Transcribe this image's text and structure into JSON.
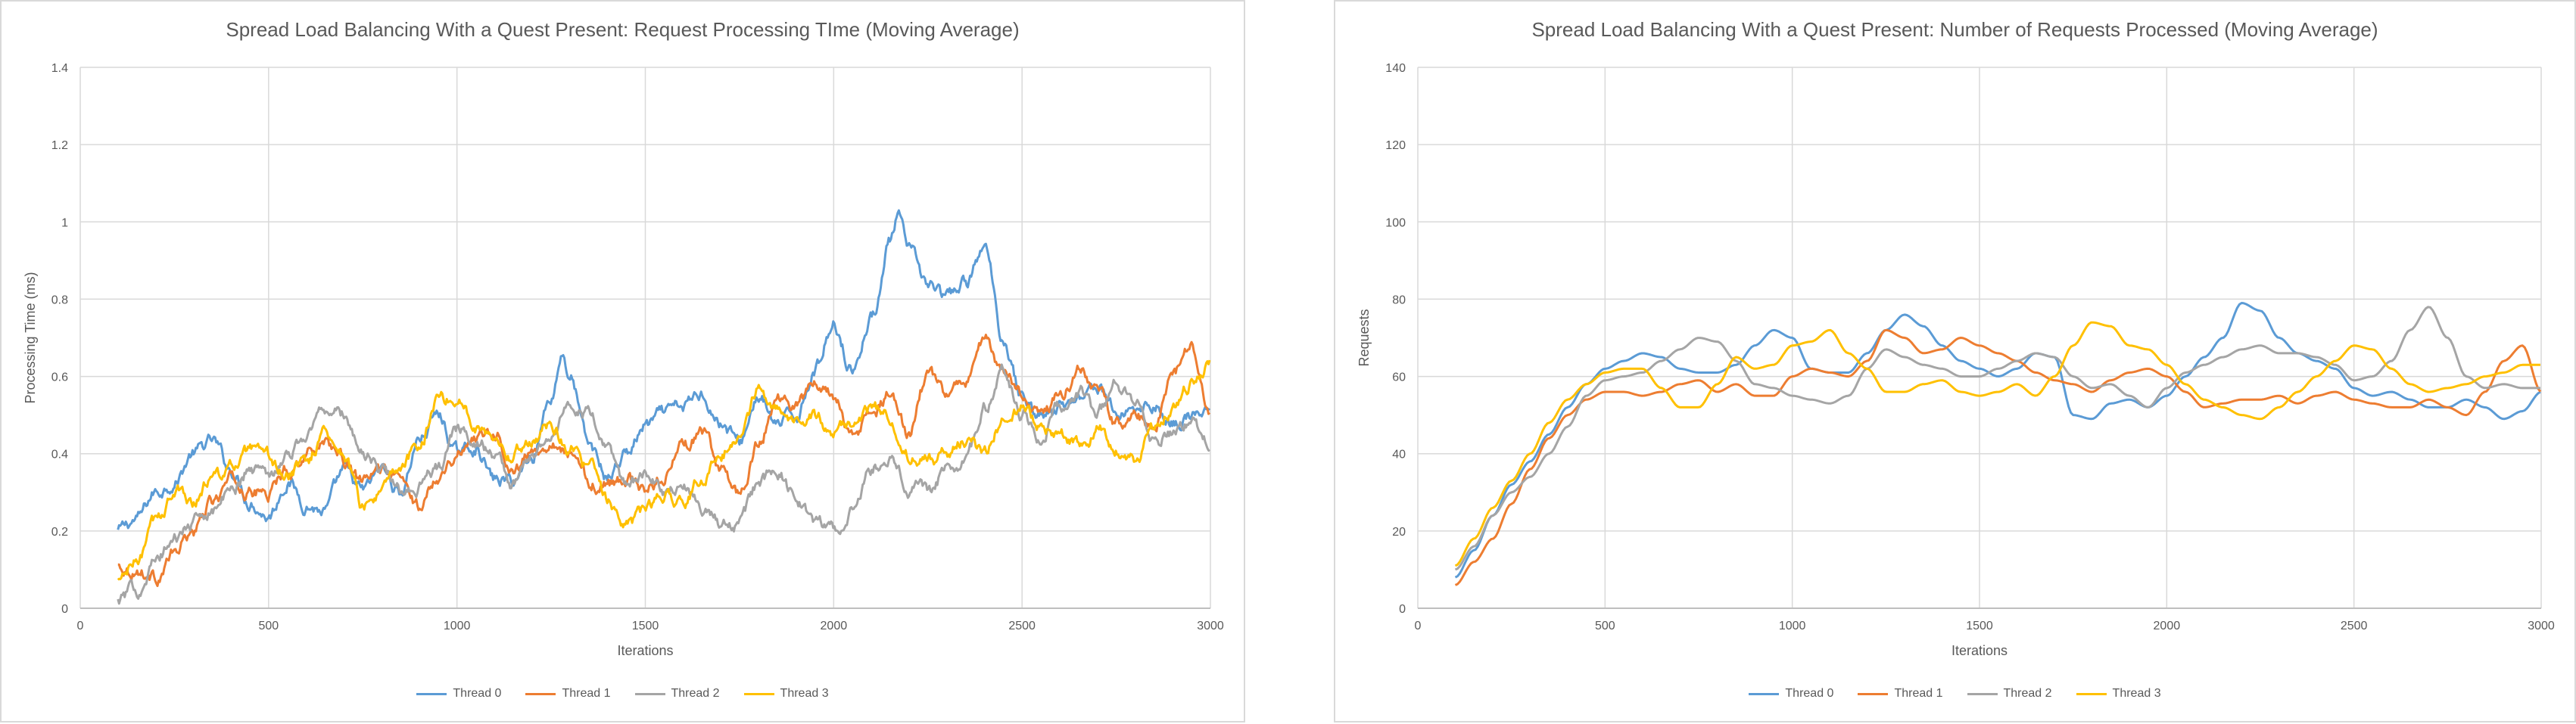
{
  "chart_data": [
    {
      "type": "line",
      "title": "Spread Load Balancing With a Quest Present: Request Processing TIme (Moving Average)",
      "xlabel": "Iterations",
      "ylabel": "Processing Time (ms)",
      "xlim": [
        0,
        3000
      ],
      "ylim": [
        0,
        1.4
      ],
      "xticks": [
        "0",
        "500",
        "1000",
        "1500",
        "2000",
        "2500",
        "3000"
      ],
      "yticks": [
        "0",
        "0.2",
        "0.4",
        "0.6",
        "0.8",
        "1",
        "1.2",
        "1.4"
      ],
      "grid": true,
      "legend_position": "bottom",
      "series": [
        {
          "name": "Thread 0",
          "color": "#5B9BD5",
          "noise": 0.025,
          "x": [
            100,
            150,
            200,
            250,
            300,
            350,
            400,
            450,
            500,
            550,
            600,
            650,
            700,
            750,
            800,
            850,
            900,
            950,
            1000,
            1050,
            1100,
            1150,
            1200,
            1250,
            1280,
            1300,
            1350,
            1400,
            1450,
            1500,
            1550,
            1600,
            1650,
            1700,
            1750,
            1800,
            1850,
            1900,
            1950,
            2000,
            2050,
            2100,
            2150,
            2170,
            2200,
            2250,
            2300,
            2350,
            2400,
            2450,
            2500,
            2550,
            2600,
            2650,
            2700,
            2750,
            2800,
            2850,
            2900,
            2950,
            3000
          ],
          "y": [
            0.2,
            0.23,
            0.3,
            0.33,
            0.4,
            0.43,
            0.36,
            0.28,
            0.24,
            0.33,
            0.27,
            0.25,
            0.35,
            0.3,
            0.36,
            0.3,
            0.44,
            0.5,
            0.4,
            0.42,
            0.33,
            0.33,
            0.4,
            0.55,
            0.66,
            0.6,
            0.42,
            0.34,
            0.4,
            0.47,
            0.5,
            0.52,
            0.56,
            0.48,
            0.43,
            0.55,
            0.47,
            0.5,
            0.62,
            0.74,
            0.62,
            0.75,
            0.95,
            1.01,
            0.92,
            0.84,
            0.8,
            0.84,
            0.93,
            0.7,
            0.55,
            0.5,
            0.52,
            0.55,
            0.58,
            0.5,
            0.52,
            0.53,
            0.48,
            0.5,
            0.5
          ]
        },
        {
          "name": "Thread 1",
          "color": "#ED7D31",
          "noise": 0.025,
          "x": [
            100,
            150,
            200,
            250,
            300,
            350,
            400,
            450,
            500,
            550,
            600,
            650,
            700,
            750,
            800,
            850,
            900,
            950,
            1000,
            1050,
            1100,
            1150,
            1200,
            1250,
            1300,
            1350,
            1400,
            1450,
            1500,
            1550,
            1600,
            1650,
            1700,
            1750,
            1800,
            1850,
            1900,
            1950,
            2000,
            2050,
            2100,
            2150,
            2200,
            2250,
            2300,
            2350,
            2400,
            2450,
            2500,
            2550,
            2600,
            2650,
            2700,
            2750,
            2800,
            2850,
            2900,
            2950,
            3000
          ],
          "y": [
            0.11,
            0.1,
            0.08,
            0.14,
            0.2,
            0.27,
            0.33,
            0.3,
            0.3,
            0.36,
            0.4,
            0.44,
            0.38,
            0.32,
            0.36,
            0.33,
            0.26,
            0.35,
            0.4,
            0.45,
            0.46,
            0.36,
            0.4,
            0.44,
            0.4,
            0.33,
            0.32,
            0.34,
            0.3,
            0.35,
            0.42,
            0.45,
            0.36,
            0.3,
            0.42,
            0.55,
            0.52,
            0.58,
            0.55,
            0.44,
            0.5,
            0.55,
            0.45,
            0.6,
            0.55,
            0.58,
            0.7,
            0.6,
            0.56,
            0.5,
            0.54,
            0.62,
            0.55,
            0.48,
            0.5,
            0.46,
            0.6,
            0.68,
            0.48
          ]
        },
        {
          "name": "Thread 2",
          "color": "#A5A5A5",
          "noise": 0.025,
          "x": [
            100,
            150,
            200,
            250,
            300,
            350,
            400,
            450,
            500,
            550,
            600,
            650,
            700,
            750,
            800,
            850,
            900,
            950,
            1000,
            1050,
            1100,
            1150,
            1200,
            1250,
            1300,
            1350,
            1400,
            1450,
            1500,
            1550,
            1600,
            1650,
            1700,
            1750,
            1800,
            1850,
            1900,
            1950,
            2000,
            2050,
            2100,
            2150,
            2200,
            2250,
            2300,
            2350,
            2400,
            2450,
            2500,
            2550,
            2600,
            2650,
            2700,
            2750,
            2800,
            2850,
            2900,
            2950,
            3000
          ],
          "y": [
            0.02,
            0.05,
            0.12,
            0.18,
            0.22,
            0.26,
            0.3,
            0.36,
            0.35,
            0.4,
            0.45,
            0.52,
            0.5,
            0.4,
            0.36,
            0.3,
            0.32,
            0.36,
            0.46,
            0.44,
            0.4,
            0.32,
            0.4,
            0.46,
            0.52,
            0.5,
            0.4,
            0.32,
            0.34,
            0.3,
            0.33,
            0.26,
            0.22,
            0.22,
            0.32,
            0.36,
            0.28,
            0.22,
            0.2,
            0.25,
            0.36,
            0.4,
            0.32,
            0.3,
            0.36,
            0.38,
            0.52,
            0.62,
            0.5,
            0.45,
            0.52,
            0.56,
            0.5,
            0.58,
            0.52,
            0.44,
            0.45,
            0.48,
            0.42
          ]
        },
        {
          "name": "Thread 3",
          "color": "#FFC000",
          "noise": 0.025,
          "x": [
            100,
            150,
            200,
            250,
            300,
            350,
            400,
            450,
            500,
            550,
            600,
            650,
            700,
            750,
            800,
            850,
            900,
            950,
            1000,
            1050,
            1100,
            1150,
            1200,
            1250,
            1300,
            1350,
            1400,
            1450,
            1500,
            1550,
            1600,
            1650,
            1700,
            1750,
            1800,
            1850,
            1900,
            1950,
            2000,
            2050,
            2100,
            2150,
            2200,
            2250,
            2300,
            2350,
            2400,
            2450,
            2500,
            2550,
            2600,
            2650,
            2700,
            2750,
            2800,
            2850,
            2900,
            2950,
            3000
          ],
          "y": [
            0.07,
            0.12,
            0.22,
            0.3,
            0.28,
            0.34,
            0.36,
            0.4,
            0.38,
            0.34,
            0.38,
            0.46,
            0.4,
            0.26,
            0.3,
            0.36,
            0.42,
            0.55,
            0.54,
            0.48,
            0.45,
            0.4,
            0.44,
            0.48,
            0.42,
            0.36,
            0.28,
            0.21,
            0.25,
            0.3,
            0.27,
            0.34,
            0.4,
            0.46,
            0.56,
            0.52,
            0.48,
            0.5,
            0.45,
            0.48,
            0.52,
            0.5,
            0.4,
            0.38,
            0.4,
            0.44,
            0.4,
            0.48,
            0.52,
            0.46,
            0.45,
            0.42,
            0.46,
            0.42,
            0.38,
            0.46,
            0.52,
            0.58,
            0.64
          ]
        }
      ]
    },
    {
      "type": "line",
      "title": "Spread Load Balancing With a Quest Present: Number of Requests Processed (Moving Average)",
      "xlabel": "Iterations",
      "ylabel": "Requests",
      "xlim": [
        0,
        3000
      ],
      "ylim": [
        0,
        140
      ],
      "xticks": [
        "0",
        "500",
        "1000",
        "1500",
        "2000",
        "2500",
        "3000"
      ],
      "yticks": [
        "0",
        "20",
        "40",
        "60",
        "80",
        "100",
        "120",
        "140"
      ],
      "grid": true,
      "legend_position": "bottom",
      "series": [
        {
          "name": "Thread 0",
          "color": "#5B9BD5",
          "noise": 0,
          "x": [
            100,
            150,
            200,
            250,
            300,
            350,
            400,
            450,
            500,
            550,
            600,
            650,
            700,
            750,
            800,
            850,
            900,
            950,
            1000,
            1050,
            1100,
            1150,
            1200,
            1250,
            1300,
            1350,
            1400,
            1450,
            1500,
            1550,
            1600,
            1650,
            1700,
            1750,
            1800,
            1850,
            1900,
            1950,
            2000,
            2050,
            2100,
            2150,
            2200,
            2250,
            2300,
            2350,
            2400,
            2450,
            2500,
            2550,
            2600,
            2650,
            2700,
            2750,
            2800,
            2850,
            2900,
            2950,
            3000
          ],
          "y": [
            8,
            15,
            24,
            32,
            38,
            45,
            52,
            58,
            62,
            64,
            66,
            65,
            62,
            61,
            61,
            63,
            68,
            72,
            70,
            62,
            61,
            61,
            66,
            72,
            76,
            73,
            68,
            64,
            62,
            60,
            62,
            66,
            65,
            50,
            49,
            53,
            54,
            52,
            55,
            60,
            65,
            70,
            79,
            77,
            70,
            66,
            64,
            62,
            57,
            55,
            56,
            54,
            52,
            52,
            54,
            52,
            49,
            51,
            56
          ]
        },
        {
          "name": "Thread 1",
          "color": "#ED7D31",
          "noise": 0,
          "x": [
            100,
            150,
            200,
            250,
            300,
            350,
            400,
            450,
            500,
            550,
            600,
            650,
            700,
            750,
            800,
            850,
            900,
            950,
            1000,
            1050,
            1100,
            1150,
            1200,
            1250,
            1300,
            1350,
            1400,
            1450,
            1500,
            1550,
            1600,
            1650,
            1700,
            1750,
            1800,
            1850,
            1900,
            1950,
            2000,
            2050,
            2100,
            2150,
            2200,
            2250,
            2300,
            2350,
            2400,
            2450,
            2500,
            2550,
            2600,
            2650,
            2700,
            2750,
            2800,
            2850,
            2900,
            2950,
            3000
          ],
          "y": [
            6,
            12,
            18,
            27,
            36,
            44,
            50,
            54,
            56,
            56,
            55,
            56,
            58,
            59,
            56,
            58,
            55,
            55,
            60,
            62,
            61,
            60,
            64,
            72,
            70,
            66,
            67,
            70,
            68,
            66,
            64,
            61,
            59,
            58,
            56,
            59,
            61,
            62,
            60,
            56,
            52,
            53,
            54,
            54,
            55,
            53,
            55,
            56,
            54,
            53,
            52,
            52,
            54,
            52,
            50,
            56,
            64,
            68,
            56
          ]
        },
        {
          "name": "Thread 2",
          "color": "#A5A5A5",
          "noise": 0,
          "x": [
            100,
            150,
            200,
            250,
            300,
            350,
            400,
            450,
            500,
            550,
            600,
            650,
            700,
            750,
            800,
            850,
            900,
            950,
            1000,
            1050,
            1100,
            1150,
            1200,
            1250,
            1300,
            1350,
            1400,
            1450,
            1500,
            1550,
            1600,
            1650,
            1700,
            1750,
            1800,
            1850,
            1900,
            1950,
            2000,
            2050,
            2100,
            2150,
            2200,
            2250,
            2300,
            2350,
            2400,
            2450,
            2500,
            2550,
            2600,
            2650,
            2700,
            2750,
            2800,
            2850,
            2900,
            2950,
            3000
          ],
          "y": [
            10,
            16,
            24,
            30,
            34,
            40,
            47,
            55,
            59,
            60,
            61,
            64,
            67,
            70,
            69,
            64,
            58,
            57,
            55,
            54,
            53,
            55,
            62,
            67,
            65,
            63,
            62,
            60,
            60,
            62,
            64,
            66,
            65,
            60,
            57,
            58,
            55,
            52,
            57,
            61,
            63,
            65,
            67,
            68,
            66,
            66,
            65,
            63,
            59,
            60,
            64,
            72,
            78,
            70,
            60,
            57,
            58,
            57,
            57
          ]
        },
        {
          "name": "Thread 3",
          "color": "#FFC000",
          "noise": 0,
          "x": [
            100,
            150,
            200,
            250,
            300,
            350,
            400,
            450,
            500,
            550,
            600,
            650,
            700,
            750,
            800,
            850,
            900,
            950,
            1000,
            1050,
            1100,
            1150,
            1200,
            1250,
            1300,
            1350,
            1400,
            1450,
            1500,
            1550,
            1600,
            1650,
            1700,
            1750,
            1800,
            1850,
            1900,
            1950,
            2000,
            2050,
            2100,
            2150,
            2200,
            2250,
            2300,
            2350,
            2400,
            2450,
            2500,
            2550,
            2600,
            2650,
            2700,
            2750,
            2800,
            2850,
            2900,
            2950,
            3000
          ],
          "y": [
            11,
            18,
            26,
            33,
            40,
            48,
            54,
            58,
            61,
            62,
            62,
            57,
            52,
            52,
            58,
            65,
            62,
            63,
            68,
            69,
            72,
            66,
            62,
            56,
            56,
            58,
            59,
            56,
            55,
            56,
            58,
            55,
            60,
            68,
            74,
            73,
            68,
            67,
            63,
            58,
            54,
            52,
            50,
            49,
            52,
            56,
            60,
            64,
            68,
            67,
            62,
            58,
            56,
            57,
            58,
            60,
            61,
            63,
            63
          ]
        }
      ]
    }
  ]
}
